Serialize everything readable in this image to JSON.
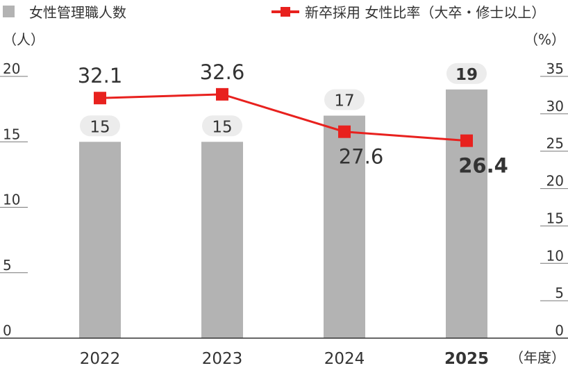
{
  "legend": {
    "bar_label": "女性管理職人数",
    "line_label": "新卒採用 女性比率（大卒・修士以上）"
  },
  "axes": {
    "left_unit": "（人）",
    "right_unit": "（%）",
    "x_unit": "（年度）"
  },
  "colors": {
    "bar": "#b3b3b3",
    "line": "#e8211e",
    "label_bg": "#ececec",
    "text": "#333333"
  },
  "chart_data": {
    "type": "bar",
    "categories": [
      "2022",
      "2023",
      "2024",
      "2025"
    ],
    "highlight_category": "2025",
    "series": [
      {
        "name": "女性管理職人数",
        "type": "bar",
        "axis": "left",
        "values": [
          15,
          15,
          17,
          19
        ],
        "labels": [
          "15",
          "15",
          "17",
          "19"
        ]
      },
      {
        "name": "新卒採用 女性比率（大卒・修士以上）",
        "type": "line",
        "axis": "right",
        "values": [
          32.1,
          32.6,
          27.6,
          26.4
        ],
        "labels": [
          "32.1",
          "32.6",
          "27.6",
          "26.4"
        ]
      }
    ],
    "y_left": {
      "min": 0,
      "max": 20,
      "ticks": [
        "0",
        "5",
        "10",
        "15",
        "20"
      ]
    },
    "y_right": {
      "min": 0,
      "max": 35,
      "ticks": [
        "0",
        "5",
        "10",
        "15",
        "20",
        "25",
        "30",
        "35"
      ]
    },
    "legend_position": "top"
  }
}
